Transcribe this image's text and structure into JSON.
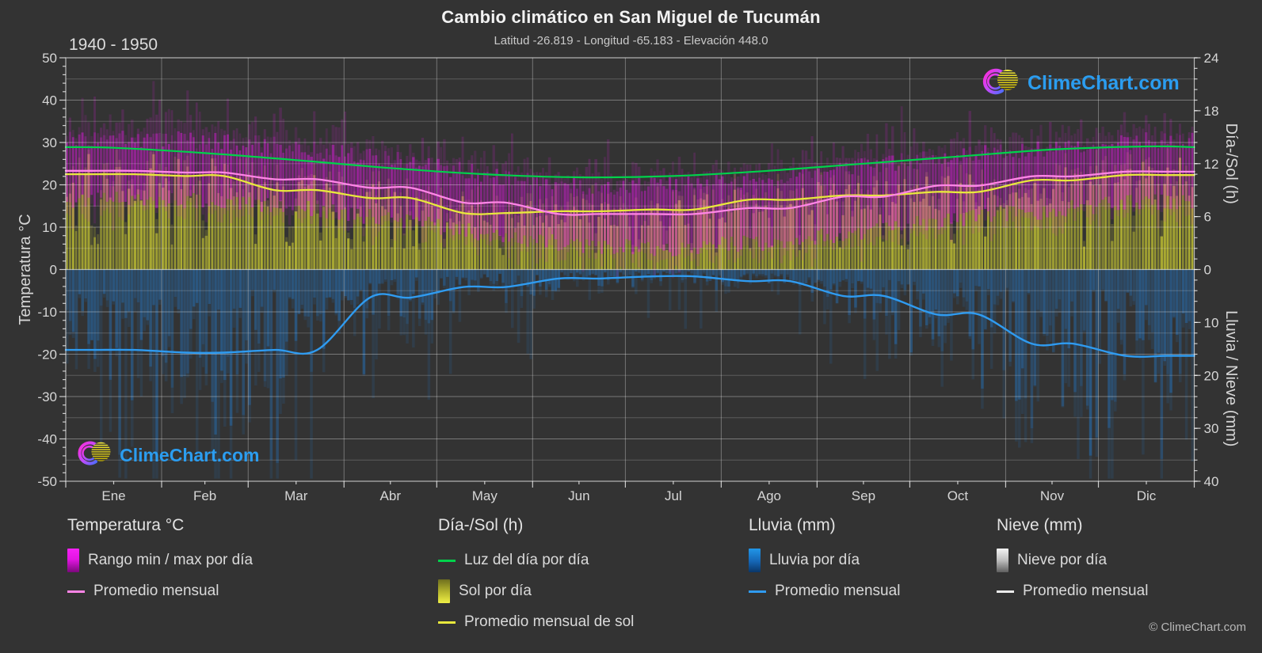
{
  "header": {
    "title": "Cambio climático en San Miguel de Tucumán",
    "subtitle": "Latitud -26.819 - Longitud -65.183 - Elevación 448.0",
    "period": "1940 - 1950"
  },
  "watermark": {
    "text": "ClimeChart.com"
  },
  "copyright": "© ClimeChart.com",
  "axes": {
    "left": {
      "label": "Temperatura °C",
      "ticks": [
        50,
        40,
        30,
        20,
        10,
        0,
        -10,
        -20,
        -30,
        -40,
        -50
      ]
    },
    "right_sun": {
      "label": "Día-/Sol (h)",
      "ticks": [
        24,
        18,
        12,
        6,
        0
      ]
    },
    "right_rain": {
      "label": "Lluvia / Nieve (mm)",
      "ticks": [
        0,
        10,
        20,
        30,
        40
      ]
    },
    "x": {
      "months": [
        "Ene",
        "Feb",
        "Mar",
        "Abr",
        "May",
        "Jun",
        "Jul",
        "Ago",
        "Sep",
        "Oct",
        "Nov",
        "Dic"
      ]
    }
  },
  "legend": {
    "groups": [
      {
        "heading": "Temperatura °C",
        "items": [
          {
            "swatch": "temp-range-gradient",
            "label": "Rango min / max por día"
          },
          {
            "swatch": "temp-avg-line",
            "label": "Promedio mensual"
          }
        ]
      },
      {
        "heading": "Día-/Sol (h)",
        "items": [
          {
            "swatch": "daylight-line",
            "label": "Luz del día por día"
          },
          {
            "swatch": "sun-gradient",
            "label": "Sol por día"
          },
          {
            "swatch": "sun-avg-line",
            "label": "Promedio mensual de sol"
          }
        ]
      },
      {
        "heading": "Lluvia (mm)",
        "items": [
          {
            "swatch": "rain-gradient",
            "label": "Lluvia por día"
          },
          {
            "swatch": "rain-avg-line",
            "label": "Promedio mensual"
          }
        ]
      },
      {
        "heading": "Nieve (mm)",
        "items": [
          {
            "swatch": "snow-gradient",
            "label": "Nieve por día"
          },
          {
            "swatch": "snow-avg-line",
            "label": "Promedio mensual"
          }
        ]
      }
    ]
  },
  "chart_data": {
    "type": "area",
    "description": "Composite climate chart: daily temperature min/max bars, daily sun-hour bars, daily rain bars (downward), with monthly average lines; period 1940-1950.",
    "months": [
      "Ene",
      "Feb",
      "Mar",
      "Abr",
      "May",
      "Jun",
      "Jul",
      "Ago",
      "Sep",
      "Oct",
      "Nov",
      "Dic"
    ],
    "days_per_month": [
      31,
      28,
      31,
      30,
      31,
      30,
      31,
      31,
      30,
      31,
      30,
      31
    ],
    "temp_axis_range_c": [
      -50,
      50
    ],
    "sun_axis_range_h": [
      0,
      24
    ],
    "rain_axis_range_mm": [
      0,
      40
    ],
    "series": [
      {
        "name": "Luz del día por día (h)",
        "values": [
          13.8,
          13.2,
          12.4,
          11.5,
          10.8,
          10.45,
          10.6,
          11.2,
          12.0,
          12.8,
          13.6,
          13.95
        ]
      },
      {
        "name": "Promedio mensual temp (°C)",
        "values": [
          23.3,
          22.9,
          21.3,
          19.3,
          15.8,
          13.1,
          13.1,
          14.5,
          17.2,
          19.8,
          22.0,
          23.1
        ]
      },
      {
        "name": "Temp máx diaria típica (°C)",
        "values": [
          31,
          30.5,
          29,
          26,
          22.5,
          19.5,
          20,
          21.5,
          24.5,
          27,
          28.5,
          30.5
        ]
      },
      {
        "name": "Temp mín diaria típica (°C)",
        "values": [
          16.5,
          16,
          14.5,
          12,
          8.5,
          5.5,
          5,
          6.5,
          9,
          12,
          14,
          16
        ]
      },
      {
        "name": "Promedio mensual de sol (h)",
        "values": [
          10.8,
          10.6,
          9.0,
          8.1,
          6.4,
          6.6,
          6.8,
          7.9,
          8.4,
          8.8,
          10.1,
          10.7
        ]
      },
      {
        "name": "Promedio mensual lluvia (mm)",
        "values": [
          15.2,
          15.7,
          15.2,
          5.3,
          3.3,
          1.7,
          1.3,
          2.2,
          5.0,
          8.5,
          14.0,
          16.3
        ]
      },
      {
        "name": "Promedio mensual nieve (mm)",
        "values": [
          0,
          0,
          0,
          0,
          0,
          0,
          0,
          0,
          0,
          0,
          0,
          0
        ]
      }
    ],
    "legend_position": "bottom",
    "grid": true
  },
  "colors": {
    "background": "#333333",
    "grid": "#ffffff",
    "axis_text": "#d6d6d6",
    "daylight_line": "#00d24b",
    "temp_avg_line": "#ff85e6",
    "temp_range_bar": "#e619e6",
    "sun_bar": "#c8c832",
    "sun_avg_line": "#e8e83c",
    "rain_bar": "#2378c8",
    "rain_avg_line": "#2f9bf0",
    "snow_bar": "#e0e0e0",
    "watermark_text": "#2b9df0"
  }
}
